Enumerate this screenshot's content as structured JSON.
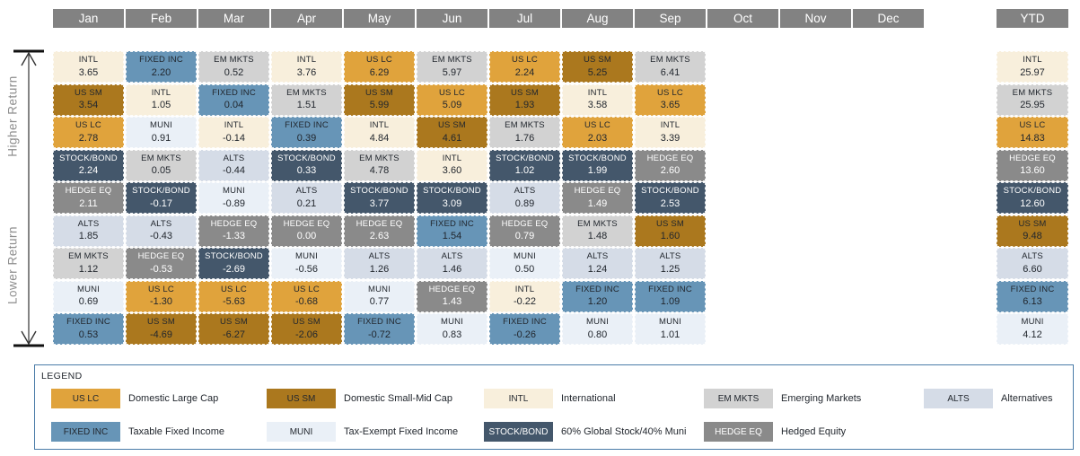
{
  "axis": {
    "higher": "Higher Return",
    "lower": "Lower Return"
  },
  "asset_classes": {
    "US LC": {
      "bg": "#e0a33c",
      "text": "#22272e"
    },
    "US SM": {
      "bg": "#ab781e",
      "text": "#22272e"
    },
    "INTL": {
      "bg": "#f8efdc",
      "text": "#22272e"
    },
    "EM MKTS": {
      "bg": "#d2d2d2",
      "text": "#22272e"
    },
    "ALTS": {
      "bg": "#d5dce7",
      "text": "#22272e"
    },
    "FIXED INC": {
      "bg": "#6795b7",
      "text": "#22272e"
    },
    "MUNI": {
      "bg": "#eaf0f7",
      "text": "#22272e"
    },
    "STOCK/BOND": {
      "bg": "#44576b",
      "text": "#ffffff"
    },
    "HEDGE EQ": {
      "bg": "#8a8a8a",
      "text": "#ffffff"
    }
  },
  "table": {
    "month_headers": [
      "Jan",
      "Feb",
      "Mar",
      "Apr",
      "May",
      "Jun",
      "Jul",
      "Aug",
      "Sep",
      "Oct",
      "Nov",
      "Dec"
    ],
    "ytd_header": "YTD",
    "columns": [
      {
        "month": "Jan",
        "cells": [
          {
            "asset": "INTL",
            "value": "3.65"
          },
          {
            "asset": "US SM",
            "value": "3.54"
          },
          {
            "asset": "US LC",
            "value": "2.78"
          },
          {
            "asset": "STOCK/BOND",
            "value": "2.24"
          },
          {
            "asset": "HEDGE EQ",
            "value": "2.11"
          },
          {
            "asset": "ALTS",
            "value": "1.85"
          },
          {
            "asset": "EM MKTS",
            "value": "1.12"
          },
          {
            "asset": "MUNI",
            "value": "0.69"
          },
          {
            "asset": "FIXED INC",
            "value": "0.53"
          }
        ]
      },
      {
        "month": "Feb",
        "cells": [
          {
            "asset": "FIXED INC",
            "value": "2.20"
          },
          {
            "asset": "INTL",
            "value": "1.05"
          },
          {
            "asset": "MUNI",
            "value": "0.91"
          },
          {
            "asset": "EM MKTS",
            "value": "0.05"
          },
          {
            "asset": "STOCK/BOND",
            "value": "-0.17"
          },
          {
            "asset": "ALTS",
            "value": "-0.43"
          },
          {
            "asset": "HEDGE EQ",
            "value": "-0.53"
          },
          {
            "asset": "US LC",
            "value": "-1.30"
          },
          {
            "asset": "US SM",
            "value": "-4.69"
          }
        ]
      },
      {
        "month": "Mar",
        "cells": [
          {
            "asset": "EM MKTS",
            "value": "0.52"
          },
          {
            "asset": "FIXED INC",
            "value": "0.04"
          },
          {
            "asset": "INTL",
            "value": "-0.14"
          },
          {
            "asset": "ALTS",
            "value": "-0.44"
          },
          {
            "asset": "MUNI",
            "value": "-0.89"
          },
          {
            "asset": "HEDGE EQ",
            "value": "-1.33"
          },
          {
            "asset": "STOCK/BOND",
            "value": "-2.69"
          },
          {
            "asset": "US LC",
            "value": "-5.63"
          },
          {
            "asset": "US SM",
            "value": "-6.27"
          }
        ]
      },
      {
        "month": "Apr",
        "cells": [
          {
            "asset": "INTL",
            "value": "3.76"
          },
          {
            "asset": "EM MKTS",
            "value": "1.51"
          },
          {
            "asset": "FIXED INC",
            "value": "0.39"
          },
          {
            "asset": "STOCK/BOND",
            "value": "0.33"
          },
          {
            "asset": "ALTS",
            "value": "0.21"
          },
          {
            "asset": "HEDGE EQ",
            "value": "0.00"
          },
          {
            "asset": "MUNI",
            "value": "-0.56"
          },
          {
            "asset": "US LC",
            "value": "-0.68"
          },
          {
            "asset": "US SM",
            "value": "-2.06"
          }
        ]
      },
      {
        "month": "May",
        "cells": [
          {
            "asset": "US LC",
            "value": "6.29"
          },
          {
            "asset": "US SM",
            "value": "5.99"
          },
          {
            "asset": "INTL",
            "value": "4.84"
          },
          {
            "asset": "EM MKTS",
            "value": "4.78"
          },
          {
            "asset": "STOCK/BOND",
            "value": "3.77"
          },
          {
            "asset": "HEDGE EQ",
            "value": "2.63"
          },
          {
            "asset": "ALTS",
            "value": "1.26"
          },
          {
            "asset": "MUNI",
            "value": "0.77"
          },
          {
            "asset": "FIXED INC",
            "value": "-0.72"
          }
        ]
      },
      {
        "month": "Jun",
        "cells": [
          {
            "asset": "EM MKTS",
            "value": "5.97"
          },
          {
            "asset": "US LC",
            "value": "5.09"
          },
          {
            "asset": "US SM",
            "value": "4.61"
          },
          {
            "asset": "INTL",
            "value": "3.60"
          },
          {
            "asset": "STOCK/BOND",
            "value": "3.09"
          },
          {
            "asset": "FIXED INC",
            "value": "1.54"
          },
          {
            "asset": "ALTS",
            "value": "1.46"
          },
          {
            "asset": "HEDGE EQ",
            "value": "1.43"
          },
          {
            "asset": "MUNI",
            "value": "0.83"
          }
        ]
      },
      {
        "month": "Jul",
        "cells": [
          {
            "asset": "US LC",
            "value": "2.24"
          },
          {
            "asset": "US SM",
            "value": "1.93"
          },
          {
            "asset": "EM MKTS",
            "value": "1.76"
          },
          {
            "asset": "STOCK/BOND",
            "value": "1.02"
          },
          {
            "asset": "ALTS",
            "value": "0.89"
          },
          {
            "asset": "HEDGE EQ",
            "value": "0.79"
          },
          {
            "asset": "MUNI",
            "value": "0.50"
          },
          {
            "asset": "INTL",
            "value": "-0.22"
          },
          {
            "asset": "FIXED INC",
            "value": "-0.26"
          }
        ]
      },
      {
        "month": "Aug",
        "cells": [
          {
            "asset": "US SM",
            "value": "5.25"
          },
          {
            "asset": "INTL",
            "value": "3.58"
          },
          {
            "asset": "US LC",
            "value": "2.03"
          },
          {
            "asset": "STOCK/BOND",
            "value": "1.99"
          },
          {
            "asset": "HEDGE EQ",
            "value": "1.49"
          },
          {
            "asset": "EM MKTS",
            "value": "1.48"
          },
          {
            "asset": "ALTS",
            "value": "1.24"
          },
          {
            "asset": "FIXED INC",
            "value": "1.20"
          },
          {
            "asset": "MUNI",
            "value": "0.80"
          }
        ]
      },
      {
        "month": "Sep",
        "cells": [
          {
            "asset": "EM MKTS",
            "value": "6.41"
          },
          {
            "asset": "US LC",
            "value": "3.65"
          },
          {
            "asset": "INTL",
            "value": "3.39"
          },
          {
            "asset": "HEDGE EQ",
            "value": "2.60"
          },
          {
            "asset": "STOCK/BOND",
            "value": "2.53"
          },
          {
            "asset": "US SM",
            "value": "1.60"
          },
          {
            "asset": "ALTS",
            "value": "1.25"
          },
          {
            "asset": "FIXED INC",
            "value": "1.09"
          },
          {
            "asset": "MUNI",
            "value": "1.01"
          }
        ]
      },
      {
        "month": "Oct",
        "cells": []
      },
      {
        "month": "Nov",
        "cells": []
      },
      {
        "month": "Dec",
        "cells": []
      }
    ],
    "ytd": {
      "cells": [
        {
          "asset": "INTL",
          "value": "25.97"
        },
        {
          "asset": "EM MKTS",
          "value": "25.95"
        },
        {
          "asset": "US LC",
          "value": "14.83"
        },
        {
          "asset": "HEDGE EQ",
          "value": "13.60"
        },
        {
          "asset": "STOCK/BOND",
          "value": "12.60"
        },
        {
          "asset": "US SM",
          "value": "9.48"
        },
        {
          "asset": "ALTS",
          "value": "6.60"
        },
        {
          "asset": "FIXED INC",
          "value": "6.13"
        },
        {
          "asset": "MUNI",
          "value": "4.12"
        }
      ]
    }
  },
  "legend": {
    "title": "LEGEND",
    "rows": [
      [
        {
          "key": "US LC",
          "desc": "Domestic Large Cap"
        },
        {
          "key": "US SM",
          "desc": "Domestic Small-Mid Cap"
        },
        {
          "key": "INTL",
          "desc": "International"
        },
        {
          "key": "EM MKTS",
          "desc": "Emerging Markets"
        },
        {
          "key": "ALTS",
          "desc": "Alternatives"
        }
      ],
      [
        {
          "key": "FIXED INC",
          "desc": "Taxable Fixed Income"
        },
        {
          "key": "MUNI",
          "desc": "Tax-Exempt Fixed Income"
        },
        {
          "key": "STOCK/BOND",
          "desc": "60% Global Stock/40% Muni"
        },
        {
          "key": "HEDGE EQ",
          "desc": "Hedged Equity"
        }
      ]
    ]
  },
  "chart_data": {
    "type": "heatmap",
    "subtype": "asset-class-return-quilt",
    "title": "Monthly asset class returns ranked higher to lower",
    "x": [
      "Jan",
      "Feb",
      "Mar",
      "Apr",
      "May",
      "Jun",
      "Jul",
      "Aug",
      "Sep",
      "YTD"
    ],
    "series": [
      {
        "name": "US LC",
        "values": [
          2.78,
          -1.3,
          -5.63,
          -0.68,
          6.29,
          5.09,
          2.24,
          2.03,
          3.65,
          14.83
        ]
      },
      {
        "name": "US SM",
        "values": [
          3.54,
          -4.69,
          -6.27,
          -2.06,
          5.99,
          4.61,
          1.93,
          5.25,
          1.6,
          9.48
        ]
      },
      {
        "name": "INTL",
        "values": [
          3.65,
          1.05,
          -0.14,
          3.76,
          4.84,
          3.6,
          -0.22,
          3.58,
          3.39,
          25.97
        ]
      },
      {
        "name": "EM MKTS",
        "values": [
          1.12,
          0.05,
          0.52,
          1.51,
          4.78,
          5.97,
          1.76,
          1.48,
          6.41,
          25.95
        ]
      },
      {
        "name": "ALTS",
        "values": [
          1.85,
          -0.43,
          -0.44,
          0.21,
          1.26,
          1.46,
          0.89,
          1.24,
          1.25,
          6.6
        ]
      },
      {
        "name": "FIXED INC",
        "values": [
          0.53,
          2.2,
          0.04,
          0.39,
          -0.72,
          1.54,
          -0.26,
          1.2,
          1.09,
          6.13
        ]
      },
      {
        "name": "MUNI",
        "values": [
          0.69,
          0.91,
          -0.89,
          -0.56,
          0.77,
          0.83,
          0.5,
          0.8,
          1.01,
          4.12
        ]
      },
      {
        "name": "STOCK/BOND",
        "values": [
          2.24,
          -0.17,
          -2.69,
          0.33,
          3.77,
          3.09,
          1.02,
          1.99,
          2.53,
          12.6
        ]
      },
      {
        "name": "HEDGE EQ",
        "values": [
          2.11,
          -0.53,
          -1.33,
          0.0,
          2.63,
          1.43,
          0.79,
          1.49,
          2.6,
          13.6
        ]
      }
    ],
    "layout": {
      "columns_ranked_descending": true,
      "empty_months": [
        "Oct",
        "Nov",
        "Dec"
      ],
      "yaxis_label": "Higher Return / Lower Return"
    }
  }
}
